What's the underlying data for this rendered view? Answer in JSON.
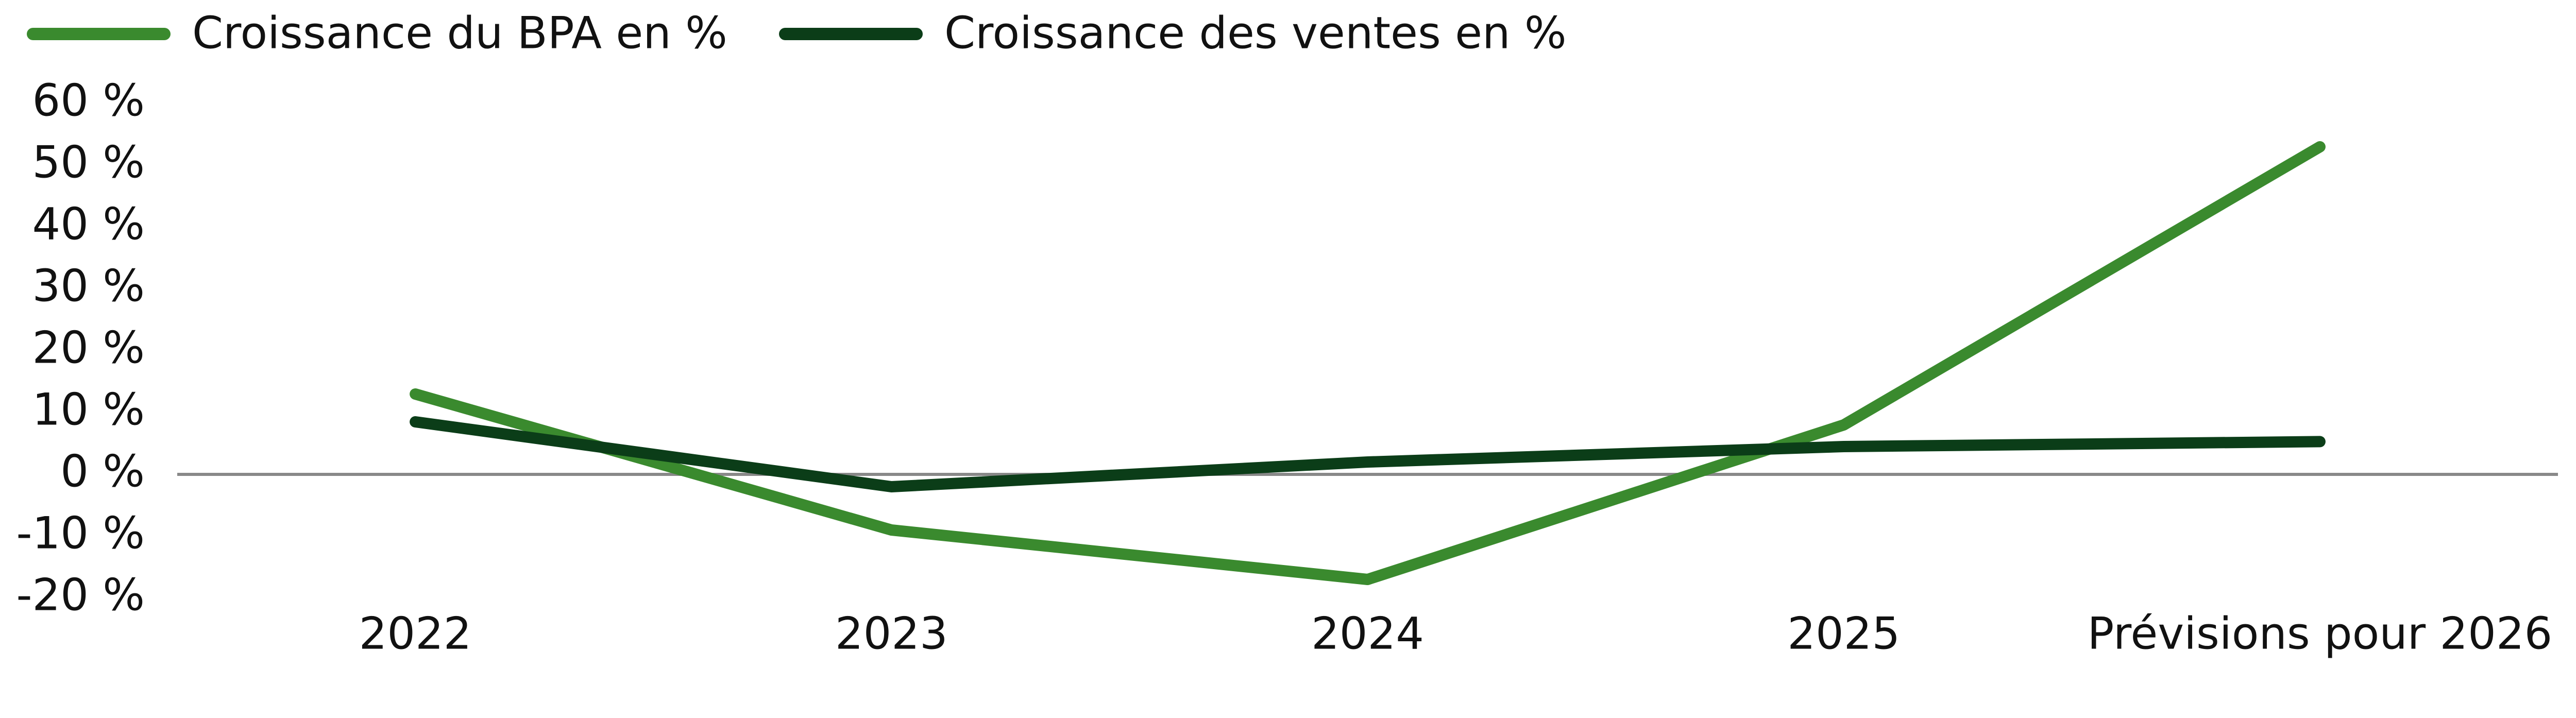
{
  "chart_data": {
    "type": "line",
    "categories": [
      "2022",
      "2023",
      "2024",
      "2025",
      "Prévisions pour 2026"
    ],
    "series": [
      {
        "name": "Croissance du BPA en %",
        "color": "#3a8a2e",
        "values": [
          13,
          -9,
          -17,
          8,
          53
        ]
      },
      {
        "name": "Croissance des ventes en %",
        "color": "#0b3d18",
        "values": [
          8.5,
          -2,
          2,
          4.5,
          5.3
        ]
      }
    ],
    "ylim": [
      -20,
      60
    ],
    "yticks": [
      {
        "value": -20,
        "label": "-20 %"
      },
      {
        "value": -10,
        "label": "-10 %"
      },
      {
        "value": 0,
        "label": "0 %"
      },
      {
        "value": 10,
        "label": "10 %"
      },
      {
        "value": 20,
        "label": "20 %"
      },
      {
        "value": 30,
        "label": "30 %"
      },
      {
        "value": 40,
        "label": "40 %"
      },
      {
        "value": 50,
        "label": "50 %"
      },
      {
        "value": 60,
        "label": "60 %"
      }
    ],
    "zero_line": true,
    "legend": "top-left"
  }
}
